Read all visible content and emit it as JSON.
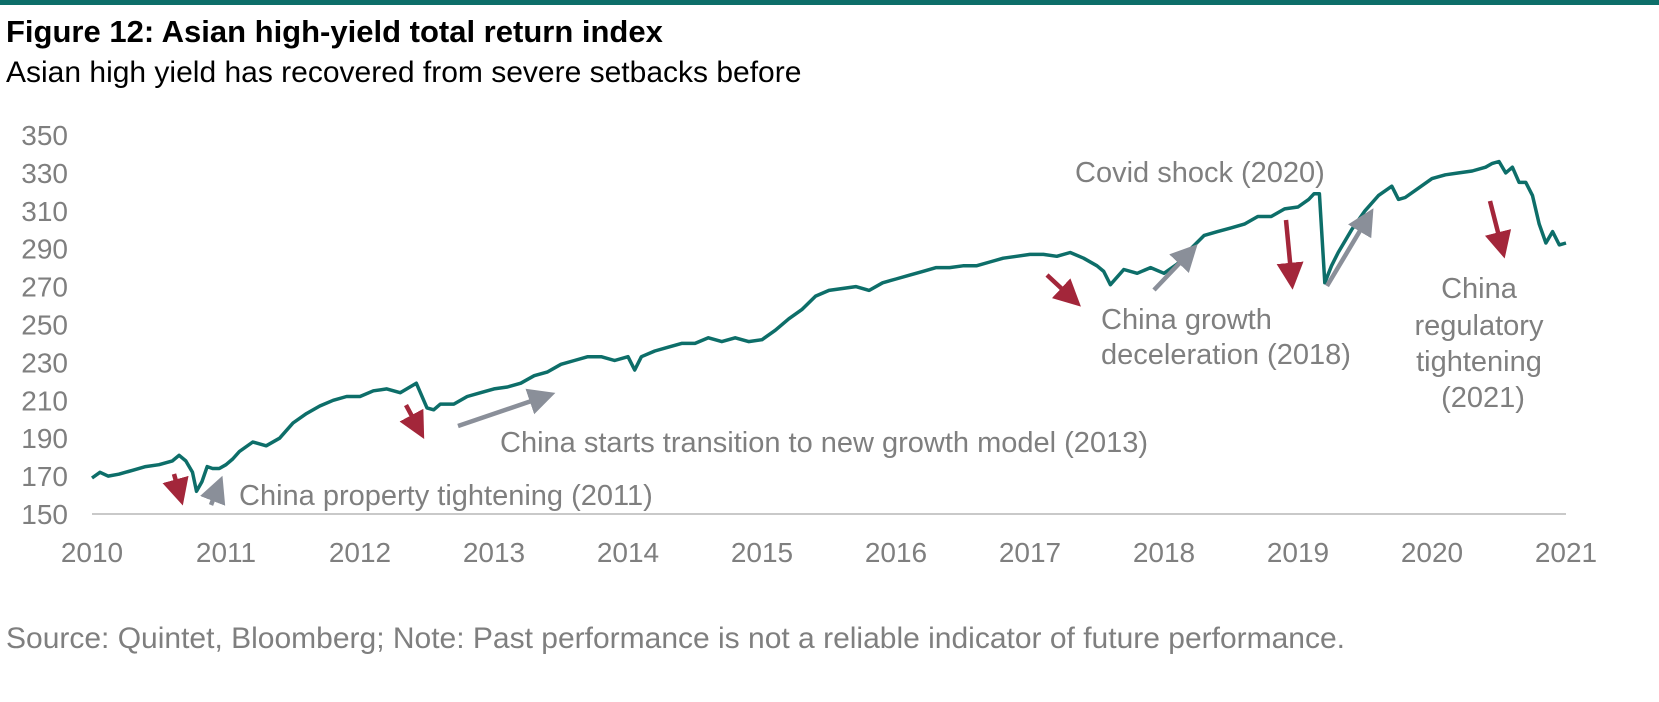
{
  "header": {
    "title": "Figure 12: Asian high-yield total return index",
    "subtitle": "Asian high yield has recovered from severe setbacks before"
  },
  "footer": {
    "source": "Source: Quintet, Bloomberg; Note: Past performance is not a reliable indicator of future performance."
  },
  "colors": {
    "line": "#0d6e69",
    "down_arrow": "#a3263a",
    "up_arrow": "#8a8f99",
    "text_gray": "#7f7f7f",
    "rule": "#0d6e69"
  },
  "chart_data": {
    "type": "line",
    "xlim": [
      2010,
      2021
    ],
    "ylim": [
      150,
      350
    ],
    "yticks": [
      150,
      170,
      190,
      210,
      230,
      250,
      270,
      290,
      310,
      330,
      350
    ],
    "xticks": [
      "2010",
      "2011",
      "2012",
      "2013",
      "2014",
      "2015",
      "2016",
      "2017",
      "2018",
      "2019",
      "2020",
      "2021"
    ],
    "grid": false,
    "series": [
      {
        "x": [
          2010.0,
          2010.06,
          2010.12,
          2010.2,
          2010.3,
          2010.4,
          2010.5,
          2010.6,
          2010.65,
          2010.7,
          2010.75,
          2010.78,
          2010.82,
          2010.86,
          2010.9,
          2010.95,
          2011.0,
          2011.05,
          2011.1,
          2011.2,
          2011.3,
          2011.4,
          2011.5,
          2011.6,
          2011.7,
          2011.8,
          2011.9,
          2012.0,
          2012.1,
          2012.2,
          2012.3,
          2012.42,
          2012.5,
          2012.55,
          2012.6,
          2012.7,
          2012.8,
          2012.9,
          2013.0,
          2013.1,
          2013.2,
          2013.3,
          2013.4,
          2013.5,
          2013.6,
          2013.7,
          2013.8,
          2013.9,
          2014.0,
          2014.05,
          2014.1,
          2014.2,
          2014.3,
          2014.4,
          2014.5,
          2014.6,
          2014.7,
          2014.8,
          2014.9,
          2015.0,
          2015.1,
          2015.2,
          2015.3,
          2015.4,
          2015.5,
          2015.6,
          2015.7,
          2015.8,
          2015.9,
          2016.0,
          2016.1,
          2016.2,
          2016.3,
          2016.4,
          2016.5,
          2016.6,
          2016.7,
          2016.8,
          2016.9,
          2017.0,
          2017.1,
          2017.2,
          2017.3,
          2017.4,
          2017.5,
          2017.55,
          2017.6,
          2017.7,
          2017.8,
          2017.9,
          2018.0,
          2018.1,
          2018.2,
          2018.3,
          2018.4,
          2018.5,
          2018.6,
          2018.7,
          2018.8,
          2018.9,
          2019.0,
          2019.08,
          2019.12,
          2019.16,
          2019.2,
          2019.25,
          2019.3,
          2019.4,
          2019.5,
          2019.6,
          2019.7,
          2019.75,
          2019.8,
          2019.9,
          2020.0,
          2020.1,
          2020.2,
          2020.3,
          2020.4,
          2020.45,
          2020.5,
          2020.55,
          2020.6,
          2020.65,
          2020.7,
          2020.75,
          2020.8,
          2020.85,
          2020.9,
          2020.95,
          2021.0
        ],
        "values": [
          169,
          172,
          170,
          171,
          173,
          175,
          176,
          178,
          181,
          178,
          172,
          162,
          167,
          175,
          174,
          174,
          176,
          179,
          183,
          188,
          186,
          190,
          198,
          203,
          207,
          210,
          212,
          212,
          215,
          216,
          214,
          219,
          206,
          205,
          208,
          208,
          212,
          214,
          216,
          217,
          219,
          223,
          225,
          229,
          231,
          233,
          233,
          231,
          233,
          226,
          233,
          236,
          238,
          240,
          240,
          243,
          241,
          243,
          241,
          242,
          247,
          253,
          258,
          265,
          268,
          269,
          270,
          268,
          272,
          274,
          276,
          278,
          280,
          280,
          281,
          281,
          283,
          285,
          286,
          287,
          287,
          286,
          288,
          285,
          281,
          278,
          271,
          279,
          277,
          280,
          277,
          282,
          290,
          297,
          299,
          301,
          303,
          307,
          307,
          311,
          312,
          316,
          319,
          319,
          272,
          281,
          288,
          300,
          310,
          318,
          323,
          316,
          317,
          322,
          327,
          329,
          330,
          331,
          333,
          335,
          336,
          330,
          333,
          325,
          325,
          318,
          303,
          293,
          299,
          292,
          293
        ]
      }
    ],
    "annotations": [
      {
        "text": "China property tightening (2011)"
      },
      {
        "text": "China starts transition to new growth model (2013)"
      },
      {
        "text": "Covid shock (2020)"
      },
      {
        "lines": [
          "China growth",
          "deceleration (2018)"
        ]
      },
      {
        "lines": [
          "China",
          "regulatory",
          "tightening",
          "(2021)"
        ]
      }
    ]
  }
}
